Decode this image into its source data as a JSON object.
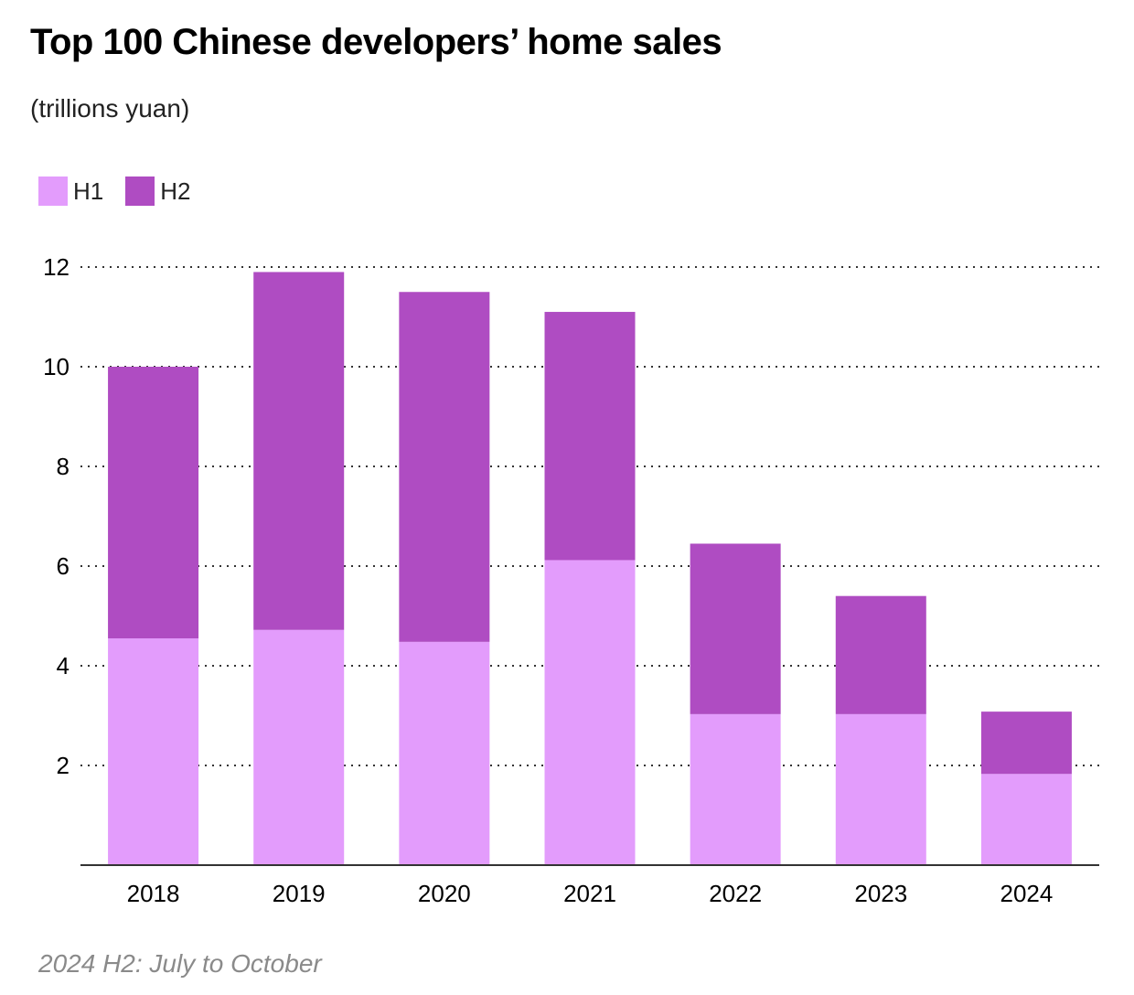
{
  "chart_data": {
    "type": "bar",
    "stacked": true,
    "title": "Top 100 Chinese developers’ home sales",
    "subtitle": "(trillions yuan)",
    "categories": [
      "2018",
      "2019",
      "2020",
      "2021",
      "2022",
      "2023",
      "2024"
    ],
    "series": [
      {
        "name": "H1",
        "values": [
          4.55,
          4.72,
          4.48,
          6.12,
          3.03,
          3.03,
          1.83
        ],
        "color": "#e39cfc"
      },
      {
        "name": "H2",
        "values": [
          5.45,
          7.18,
          7.02,
          4.98,
          3.42,
          2.37,
          1.25
        ],
        "color": "#af4cc2"
      }
    ],
    "yticks": [
      "2",
      "4",
      "6",
      "8",
      "10",
      "12"
    ],
    "ylim": [
      0,
      12
    ],
    "grid": true,
    "legend_position": "top-left",
    "note": "2024 H2: July to October"
  }
}
